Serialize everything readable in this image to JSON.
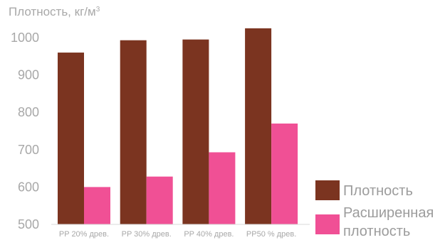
{
  "chart_data": {
    "type": "bar",
    "ylabel": "Плотность, кг/м",
    "ylabel_sup": "3",
    "categories": [
      "PP 20% древ.",
      "PP 30% древ.",
      "PP 40% древ.",
      "PP50 % древ."
    ],
    "yticks": [
      "500",
      "600",
      "700",
      "800",
      "900",
      "1000"
    ],
    "ylim": [
      500,
      1000
    ],
    "grid": false,
    "legend_position": "right",
    "series": [
      {
        "name": "Плотность",
        "color": "#7b3420",
        "values": [
          960,
          993,
          995,
          1025
        ]
      },
      {
        "name": "Расширенная плотность",
        "name_lines": [
          "Расширенная",
          "плотность"
        ],
        "color": "#f05095",
        "values": [
          600,
          628,
          693,
          770
        ]
      }
    ]
  }
}
